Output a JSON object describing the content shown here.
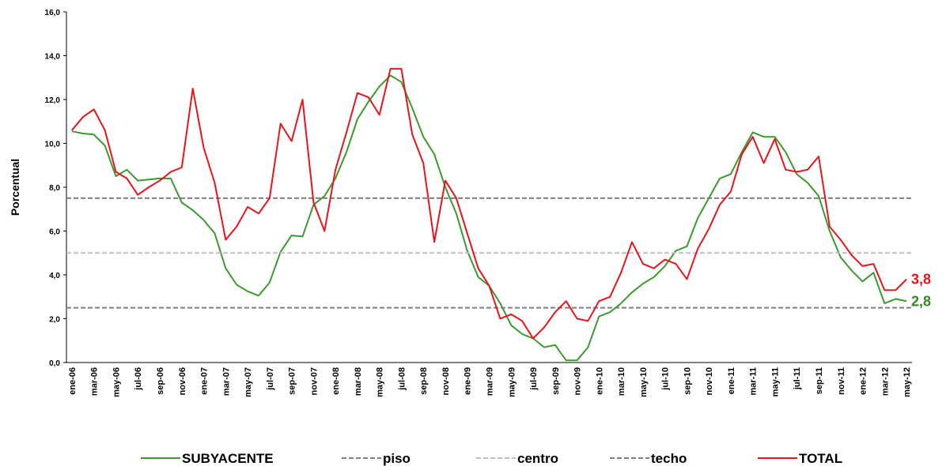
{
  "chart_data": {
    "type": "line",
    "ylabel": "Porcentual",
    "categories": [
      "ene-06",
      null,
      "mar-06",
      null,
      "may-06",
      null,
      "jul-06",
      null,
      "sep-06",
      null,
      "nov-06",
      null,
      "ene-07",
      null,
      "mar-07",
      null,
      "may-07",
      null,
      "jul-07",
      null,
      "sep-07",
      null,
      "nov-07",
      null,
      "ene-08",
      null,
      "mar-08",
      null,
      "may-08",
      null,
      "jul-08",
      null,
      "sep-08",
      null,
      "nov-08",
      null,
      "ene-09",
      null,
      "mar-09",
      null,
      "may-09",
      null,
      "jul-09",
      null,
      "sep-09",
      null,
      "nov-09",
      null,
      "ene-10",
      null,
      "mar-10",
      null,
      "may-10",
      null,
      "jul-10",
      null,
      "sep-10",
      null,
      "nov-10",
      null,
      "ene-11",
      null,
      "mar-11",
      null,
      "may-11",
      null,
      "jul-11",
      null,
      "sep-11",
      null,
      "nov-11",
      null,
      "ene-12",
      null,
      "mar-12",
      null,
      "may-12"
    ],
    "series": [
      {
        "name": "SUBYACENTE",
        "color": "#3a9a2e",
        "values": [
          10.55,
          10.45,
          10.4,
          9.9,
          8.5,
          8.8,
          8.3,
          8.35,
          8.4,
          8.4,
          7.3,
          6.95,
          6.5,
          5.9,
          4.3,
          3.55,
          3.25,
          3.05,
          3.65,
          5.05,
          5.8,
          5.75,
          7.2,
          7.6,
          8.4,
          9.6,
          11.1,
          11.9,
          12.6,
          13.1,
          12.8,
          11.6,
          10.3,
          9.5,
          8.0,
          6.8,
          5.1,
          3.9,
          3.5,
          2.7,
          1.7,
          1.3,
          1.1,
          0.7,
          0.8,
          0.1,
          0.1,
          0.7,
          2.1,
          2.3,
          2.7,
          3.2,
          3.6,
          3.9,
          4.4,
          5.1,
          5.3,
          6.6,
          7.5,
          8.4,
          8.6,
          9.6,
          10.5,
          10.3,
          10.3,
          9.6,
          8.6,
          8.2,
          7.6,
          6.0,
          4.8,
          4.2,
          3.7,
          4.1,
          2.7,
          2.9,
          2.8
        ],
        "value_labels": [
          null,
          null,
          null,
          null,
          null,
          null,
          null,
          null,
          null,
          null,
          null,
          null,
          null,
          null,
          null,
          null,
          null,
          null,
          null,
          null,
          null,
          null,
          null,
          null,
          null,
          null,
          null,
          null,
          null,
          null,
          null,
          null,
          null,
          null,
          null,
          null,
          null,
          null,
          null,
          null,
          null,
          null,
          null,
          null,
          null,
          null,
          null,
          null,
          null,
          null,
          null,
          null,
          null,
          null,
          null,
          null,
          null,
          null,
          null,
          null,
          null,
          null,
          null,
          null,
          null,
          null,
          null,
          null,
          null,
          null,
          null,
          null,
          null,
          null,
          null,
          null,
          "2,8"
        ],
        "label_color": "#2e8b1e"
      },
      {
        "name": "piso",
        "color": "#7f7f7f",
        "dash": true,
        "value": 2.5
      },
      {
        "name": "centro",
        "color": "#bfbfbf",
        "dash": true,
        "value": 5.0
      },
      {
        "name": "techo",
        "color": "#7f7f7f",
        "dash": true,
        "value": 7.5
      },
      {
        "name": "TOTAL",
        "color": "#e8141c",
        "values": [
          10.6,
          11.2,
          11.55,
          10.6,
          8.7,
          8.4,
          7.65,
          8.0,
          8.3,
          8.7,
          8.9,
          12.5,
          9.8,
          8.2,
          5.6,
          6.2,
          7.1,
          6.8,
          7.5,
          10.9,
          10.1,
          12.0,
          7.3,
          6.0,
          8.8,
          10.5,
          12.3,
          12.1,
          11.3,
          13.4,
          13.4,
          10.4,
          9.1,
          5.5,
          8.3,
          7.5,
          5.9,
          4.3,
          3.5,
          2.0,
          2.2,
          1.9,
          1.1,
          1.6,
          2.3,
          2.8,
          2.0,
          1.9,
          2.8,
          3.0,
          4.1,
          5.5,
          4.5,
          4.3,
          4.7,
          4.5,
          3.8,
          5.2,
          6.1,
          7.2,
          7.8,
          9.5,
          10.3,
          9.1,
          10.2,
          8.8,
          8.7,
          8.8,
          9.4,
          6.2,
          5.6,
          4.9,
          4.4,
          4.5,
          3.3,
          3.3,
          3.8
        ],
        "value_labels": [
          null,
          null,
          null,
          null,
          null,
          null,
          null,
          null,
          null,
          null,
          null,
          null,
          null,
          null,
          null,
          null,
          null,
          null,
          null,
          null,
          null,
          null,
          null,
          null,
          null,
          null,
          null,
          null,
          null,
          null,
          null,
          null,
          null,
          null,
          null,
          null,
          null,
          null,
          null,
          null,
          null,
          null,
          null,
          null,
          null,
          null,
          null,
          null,
          null,
          null,
          null,
          null,
          null,
          null,
          null,
          null,
          null,
          null,
          null,
          null,
          null,
          null,
          null,
          null,
          null,
          null,
          null,
          null,
          null,
          null,
          null,
          null,
          null,
          null,
          null,
          null,
          "3,8"
        ],
        "label_color": "#e8141c"
      }
    ],
    "ylim": [
      0,
      16
    ],
    "yticks": [
      {
        "value": 0,
        "label": "0,0"
      },
      {
        "value": 2,
        "label": "2,0"
      },
      {
        "value": 4,
        "label": "4,0"
      },
      {
        "value": 6,
        "label": "6,0"
      },
      {
        "value": 8,
        "label": "8,0"
      },
      {
        "value": 10,
        "label": "10,0"
      },
      {
        "value": 12,
        "label": "12,0"
      },
      {
        "value": 14,
        "label": "14,0"
      },
      {
        "value": 16,
        "label": "16,0"
      }
    ]
  }
}
